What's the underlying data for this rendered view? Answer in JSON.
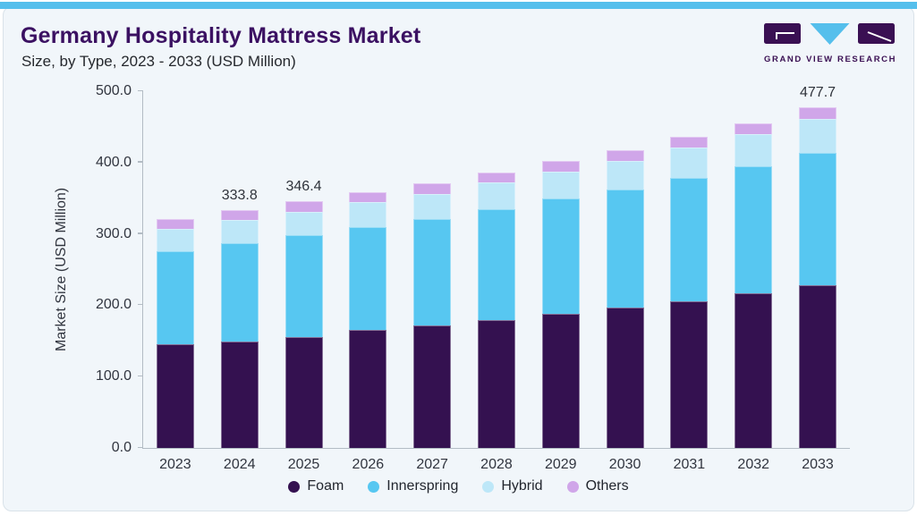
{
  "header": {
    "title": "Germany Hospitality Mattress Market",
    "subtitle": "Size, by Type, 2023 - 2033 (USD Million)"
  },
  "logo": {
    "text": "GRAND VIEW RESEARCH"
  },
  "colors": {
    "accent_blue": "#55BFEC",
    "brand_purple": "#3A1053",
    "title_purple": "#3B1162",
    "card_background": "#F1F6FA",
    "axis_gray": "#B3BCC4"
  },
  "chart_data": {
    "type": "bar",
    "stacked": true,
    "title": "Germany Hospitality Mattress Market Size, by Type, 2023 - 2033 (USD Million)",
    "xlabel": "",
    "ylabel": "Market Size (USD Million)",
    "ylim": [
      0,
      500
    ],
    "yticks": [
      "0.0",
      "100.0",
      "200.0",
      "300.0",
      "400.0",
      "500.0"
    ],
    "grid": false,
    "legend_position": "bottom",
    "categories": [
      "2023",
      "2024",
      "2025",
      "2026",
      "2027",
      "2028",
      "2029",
      "2030",
      "2031",
      "2032",
      "2033"
    ],
    "series": [
      {
        "name": "Foam",
        "color": "#341150",
        "values": [
          145.4,
          149.1,
          155.4,
          165.4,
          171.7,
          179.2,
          188.0,
          196.7,
          205.5,
          216.8,
          228.0
        ]
      },
      {
        "name": "Innerspring",
        "color": "#57C7F1",
        "values": [
          130.3,
          137.9,
          142.8,
          144.1,
          149.1,
          155.4,
          161.6,
          165.4,
          172.9,
          177.9,
          185.4
        ]
      },
      {
        "name": "Hybrid",
        "color": "#BDE7F8",
        "values": [
          31.3,
          32.5,
          32.6,
          35.1,
          35.1,
          37.6,
          37.6,
          40.1,
          42.6,
          45.2,
          47.6
        ]
      },
      {
        "name": "Others",
        "color": "#D0A6E9",
        "values": [
          13.8,
          14.3,
          15.6,
          13.5,
          15.0,
          13.8,
          15.0,
          15.1,
          15.1,
          15.0,
          16.7
        ]
      }
    ],
    "bar_labels": {
      "2024": "333.8",
      "2025": "346.4",
      "2033": "477.7"
    }
  }
}
